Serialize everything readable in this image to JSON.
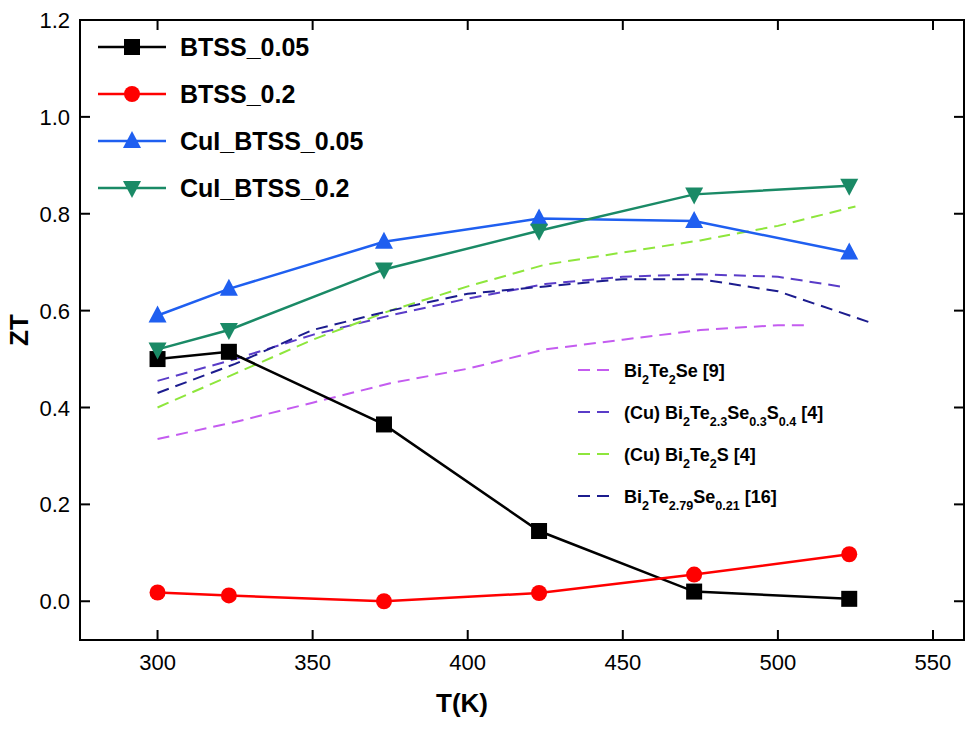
{
  "chart_data": {
    "type": "line",
    "x_label": "T(K)",
    "y_label": "ZT",
    "xlim": [
      275,
      560
    ],
    "ylim": [
      -0.08,
      1.2
    ],
    "xticks": [
      300,
      350,
      400,
      450,
      500,
      550
    ],
    "yticks": [
      {
        "value": 0,
        "label": "0.0"
      },
      0.2,
      0.4,
      0.6,
      0.8,
      {
        "value": 1,
        "label": "1.0"
      },
      1.2
    ],
    "legend": "upper left",
    "series": [
      {
        "name": "BTSS_0.05",
        "color": "#000000",
        "marker": "square",
        "line_style": "solid",
        "x": [
          300,
          323,
          373,
          423,
          473,
          523
        ],
        "values": [
          0.5,
          0.515,
          0.365,
          0.145,
          0.02,
          0.005
        ]
      },
      {
        "name": "BTSS_0.2",
        "color": "#ff0000",
        "marker": "circle",
        "line_style": "solid",
        "x": [
          300,
          323,
          373,
          423,
          473,
          523
        ],
        "values": [
          0.018,
          0.012,
          0.0,
          0.017,
          0.055,
          0.097
        ]
      },
      {
        "name": "CuI_BTSS_0.05",
        "color": "#1f5ff0",
        "marker": "triangle-up",
        "line_style": "solid",
        "x": [
          300,
          323,
          373,
          423,
          473,
          523
        ],
        "values": [
          0.59,
          0.645,
          0.742,
          0.79,
          0.785,
          0.72
        ]
      },
      {
        "name": "CuI_BTSS_0.2",
        "color": "#1a8a66",
        "marker": "triangle-down",
        "line_style": "solid",
        "x": [
          300,
          323,
          373,
          423,
          473,
          523
        ],
        "values": [
          0.52,
          0.56,
          0.685,
          0.765,
          0.84,
          0.858
        ]
      },
      {
        "name": "Bi2Te2Se [9]",
        "color": "#c45cf0",
        "marker": "none",
        "line_style": "dashed",
        "x": [
          300,
          325,
          350,
          375,
          400,
          425,
          450,
          475,
          500,
          510
        ],
        "values": [
          0.335,
          0.37,
          0.41,
          0.45,
          0.48,
          0.52,
          0.54,
          0.56,
          0.57,
          0.57
        ]
      },
      {
        "name": "(Cu) Bi2Te2.3Se0.3S0.4 [4]",
        "color": "#5a3cc8",
        "marker": "none",
        "line_style": "dashed",
        "x": [
          300,
          325,
          350,
          375,
          400,
          425,
          450,
          475,
          500,
          520
        ],
        "values": [
          0.455,
          0.5,
          0.55,
          0.59,
          0.625,
          0.655,
          0.67,
          0.675,
          0.67,
          0.65
        ]
      },
      {
        "name": "(Cu) Bi2Te2S [4]",
        "color": "#8ee63c",
        "marker": "none",
        "line_style": "dashed",
        "x": [
          300,
          325,
          350,
          375,
          400,
          425,
          450,
          475,
          500,
          525
        ],
        "values": [
          0.4,
          0.47,
          0.54,
          0.6,
          0.65,
          0.695,
          0.72,
          0.745,
          0.775,
          0.815
        ]
      },
      {
        "name": "Bi2Te2.79Se0.21 [16]",
        "color": "#1c1c8e",
        "marker": "none",
        "line_style": "dashed",
        "x": [
          300,
          325,
          350,
          375,
          400,
          425,
          450,
          475,
          500,
          530
        ],
        "values": [
          0.43,
          0.49,
          0.56,
          0.6,
          0.635,
          0.65,
          0.665,
          0.665,
          0.64,
          0.575
        ]
      }
    ]
  }
}
